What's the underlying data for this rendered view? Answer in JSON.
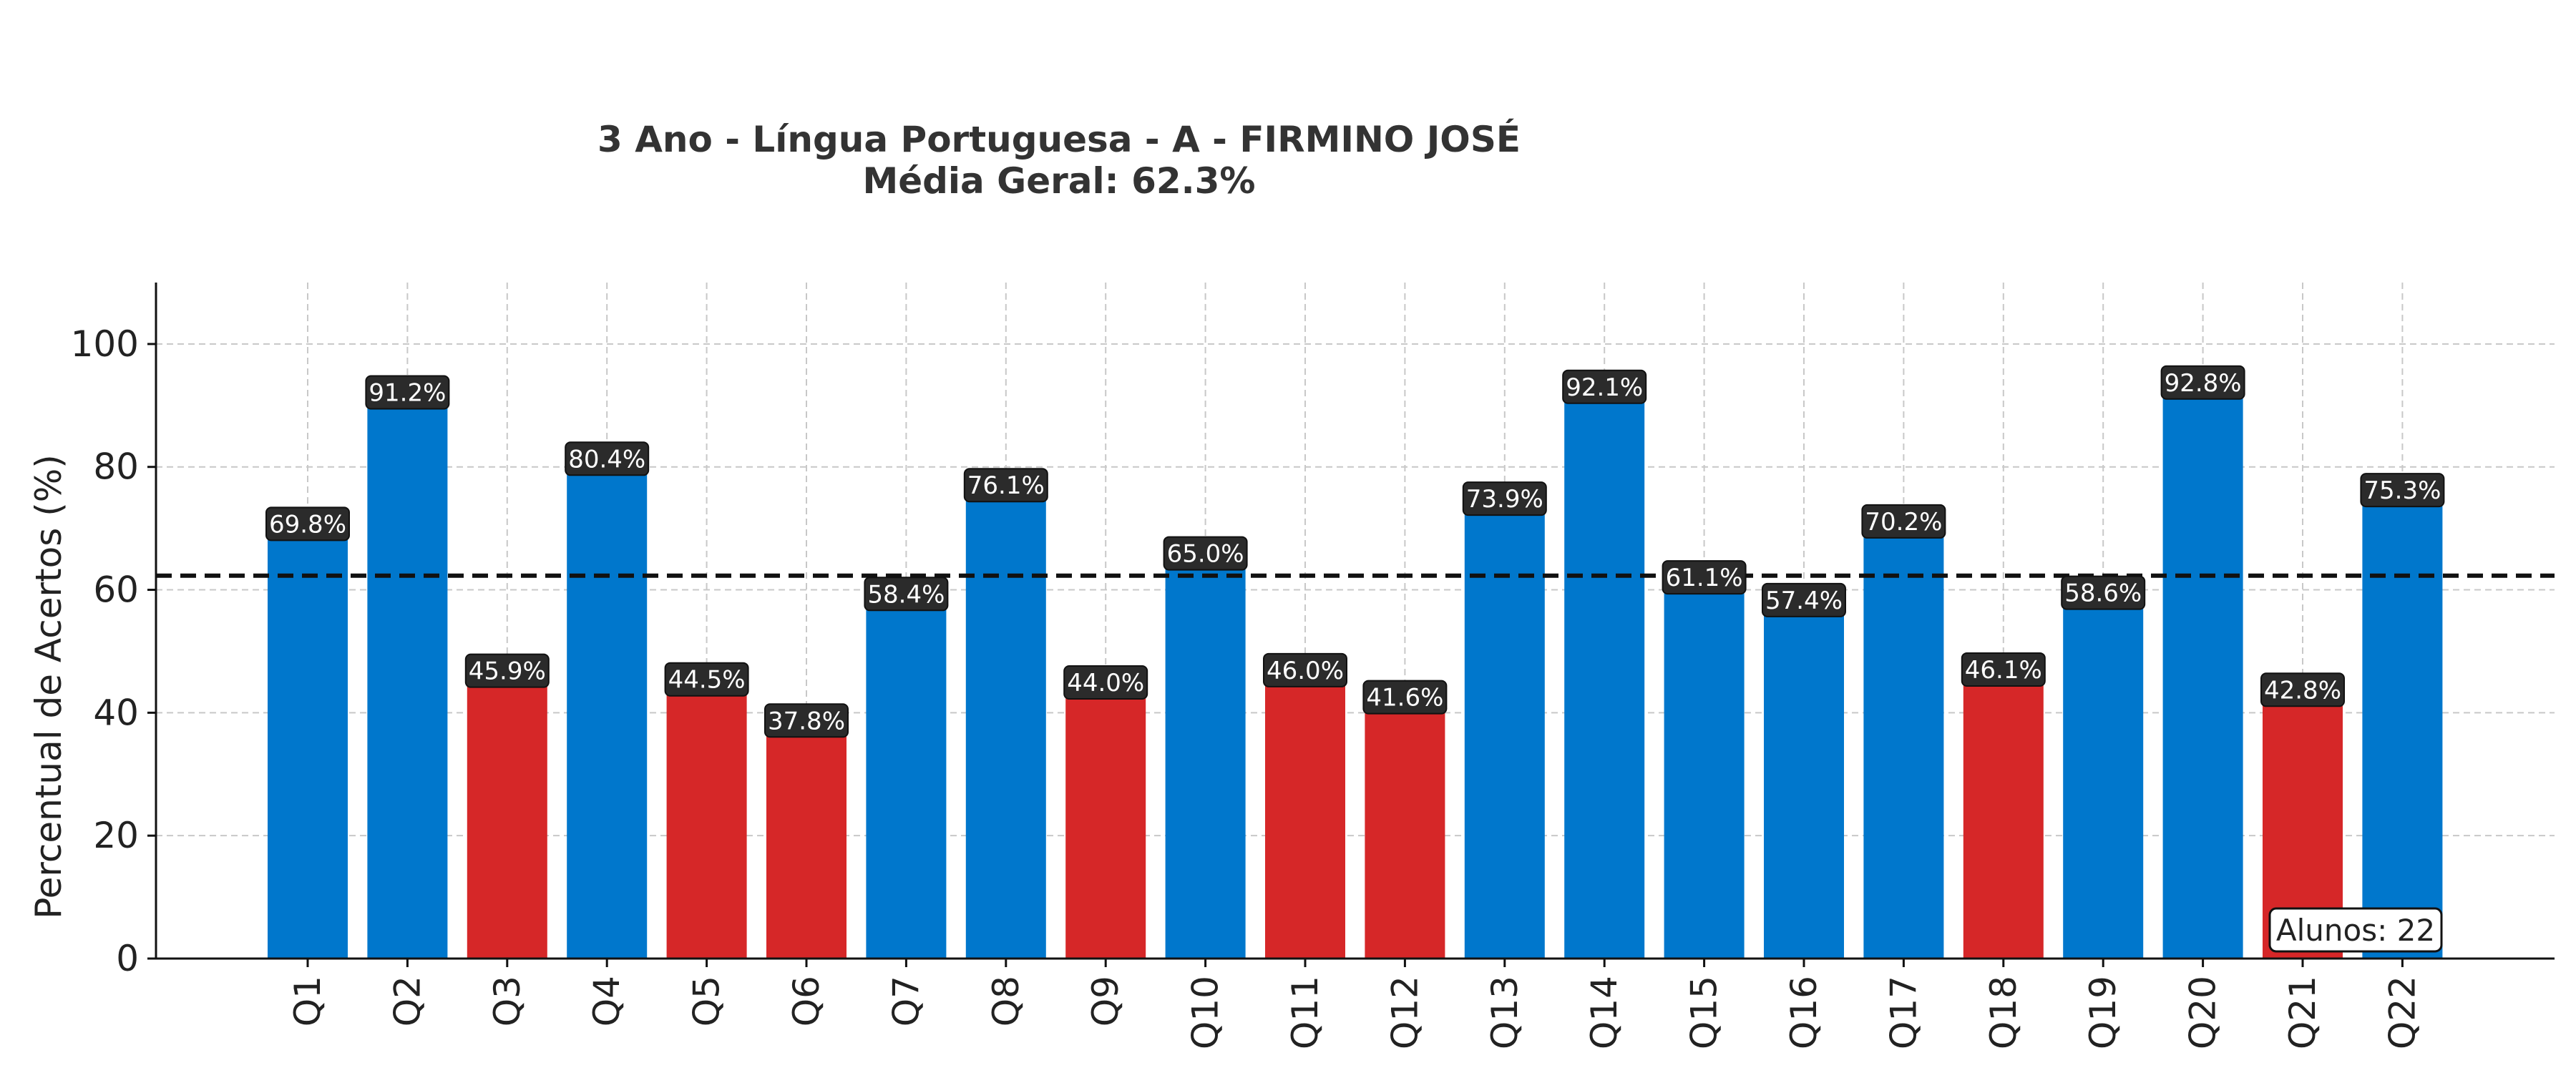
{
  "chart_data": {
    "type": "bar",
    "title": "3 Ano - Língua Portuguesa - A - FIRMINO JOSÉ",
    "subtitle": "Média Geral: 62.3%",
    "xlabel": "",
    "ylabel": "Percentual de Acertos (%)",
    "ylim": [
      0,
      110
    ],
    "yticks": [
      0,
      20,
      40,
      60,
      80,
      100
    ],
    "grid": true,
    "mean_line": 62.3,
    "threshold": 50,
    "colors": {
      "above": "#0077cc",
      "below": "#d62728",
      "mean": "#111111",
      "label_bg": "#2b2b2b"
    },
    "categories": [
      "Q1",
      "Q2",
      "Q3",
      "Q4",
      "Q5",
      "Q6",
      "Q7",
      "Q8",
      "Q9",
      "Q10",
      "Q11",
      "Q12",
      "Q13",
      "Q14",
      "Q15",
      "Q16",
      "Q17",
      "Q18",
      "Q19",
      "Q20",
      "Q21",
      "Q22"
    ],
    "values": [
      69.8,
      91.2,
      45.9,
      80.4,
      44.5,
      37.8,
      58.4,
      76.1,
      44.0,
      65.0,
      46.0,
      41.6,
      73.9,
      92.1,
      61.1,
      57.4,
      70.2,
      46.1,
      58.6,
      92.8,
      42.8,
      75.3
    ],
    "value_labels": [
      "69.8%",
      "91.2%",
      "45.9%",
      "80.4%",
      "44.5%",
      "37.8%",
      "58.4%",
      "76.1%",
      "44.0%",
      "65.0%",
      "46.0%",
      "41.6%",
      "73.9%",
      "92.1%",
      "61.1%",
      "57.4%",
      "70.2%",
      "46.1%",
      "58.6%",
      "92.8%",
      "42.8%",
      "75.3%"
    ],
    "annotation": "Alunos: 22"
  }
}
